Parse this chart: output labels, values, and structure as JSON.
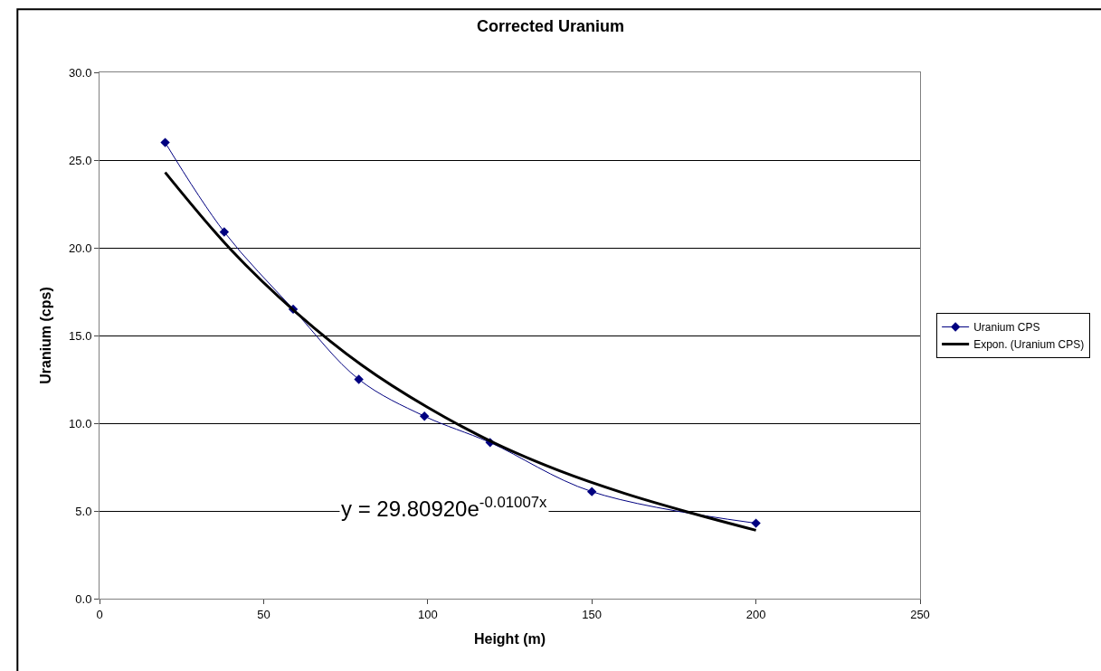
{
  "chart_data": {
    "type": "line",
    "title": "Corrected Uranium",
    "xlabel": "Height (m)",
    "ylabel": "Uranium (cps)",
    "xlim": [
      0,
      250
    ],
    "xticks": [
      0,
      50,
      100,
      150,
      200,
      250
    ],
    "ylim": [
      0,
      30
    ],
    "yticks": [
      {
        "value": 0,
        "label": "0.0"
      },
      {
        "value": 5,
        "label": "5.0"
      },
      {
        "value": 10,
        "label": "10.0"
      },
      {
        "value": 15,
        "label": "15.0"
      },
      {
        "value": 20,
        "label": "20.0"
      },
      {
        "value": 25,
        "label": "25.0"
      },
      {
        "value": 30,
        "label": "30.0"
      }
    ],
    "grid": "y",
    "legend": "right",
    "series": [
      {
        "name": "Uranium CPS",
        "color": "#000080",
        "marker": "diamond",
        "line_style": "solid",
        "x": [
          20,
          38,
          59,
          79,
          99,
          119,
          150,
          200
        ],
        "values": [
          26.0,
          20.9,
          16.5,
          12.5,
          10.4,
          8.9,
          6.1,
          4.3
        ]
      },
      {
        "name": "Expon. (Uranium CPS)",
        "color": "#000000",
        "marker": "none",
        "line_style": "solid",
        "x": [
          20,
          40,
          60,
          80,
          100,
          120,
          140,
          160,
          180,
          200
        ],
        "values": [
          24.3,
          19.9,
          16.3,
          13.3,
          10.9,
          8.9,
          7.3,
          6.0,
          4.9,
          3.9
        ]
      }
    ],
    "annotations": [
      "y = 29.80920e$^{-0.01007x}$"
    ]
  }
}
